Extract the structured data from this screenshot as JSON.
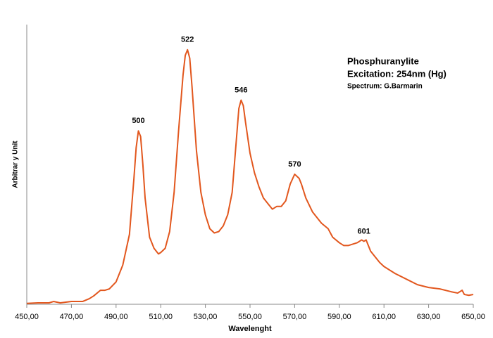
{
  "chart_data": {
    "type": "line",
    "title": "Phosphuranylite",
    "subtitle": "Excitation: 254nm (Hg)",
    "note": "Spectrum: G.Barmarin",
    "x_label": "Wavelenght",
    "y_label": "Arbitrar y Unit",
    "color": "#e2571e",
    "x": [
      450,
      455,
      460,
      462,
      465,
      470,
      475,
      478,
      480,
      483,
      485,
      487,
      490,
      493,
      496,
      498,
      499,
      500,
      501,
      502,
      503,
      505,
      507,
      509,
      510,
      512,
      514,
      516,
      518,
      520,
      521,
      522,
      523,
      524,
      526,
      528,
      530,
      532,
      534,
      536,
      538,
      540,
      542,
      544,
      545,
      546,
      547,
      548,
      550,
      552,
      554,
      556,
      558,
      560,
      562,
      564,
      566,
      568,
      570,
      572,
      573,
      575,
      578,
      580,
      582,
      585,
      587,
      590,
      592,
      594,
      596,
      598,
      600,
      601,
      602,
      604,
      606,
      608,
      610,
      615,
      620,
      625,
      630,
      635,
      640,
      643,
      645,
      646,
      648,
      650
    ],
    "values": [
      0.3,
      0.5,
      0.5,
      1,
      0.5,
      1,
      1,
      2,
      3,
      5,
      5,
      5.5,
      8,
      14,
      25,
      45,
      56,
      62,
      60,
      50,
      38,
      24,
      20,
      18,
      18.5,
      20,
      26,
      40,
      62,
      82,
      89,
      91,
      88,
      78,
      55,
      40,
      32,
      27,
      25.5,
      26,
      28,
      32,
      40,
      60,
      70,
      73,
      71,
      65,
      54,
      47,
      42,
      38,
      36,
      34,
      35,
      35,
      37,
      43,
      46.5,
      45,
      43,
      38,
      33,
      31,
      29,
      27,
      24,
      22,
      21,
      21,
      21.5,
      22,
      23,
      22.5,
      23,
      19,
      17,
      15,
      13.5,
      11,
      9,
      7,
      6,
      5.5,
      4.5,
      4,
      5,
      3.5,
      3.2,
      3.5
    ],
    "peak_labels": [
      500,
      522,
      546,
      570,
      601
    ],
    "xlim": [
      450,
      650
    ],
    "ylim": [
      0,
      100
    ],
    "xticks": [
      {
        "value": 450,
        "label": "450,00"
      },
      {
        "value": 470,
        "label": "470,00"
      },
      {
        "value": 490,
        "label": "490,00"
      },
      {
        "value": 510,
        "label": "510,00"
      },
      {
        "value": 530,
        "label": "530,00"
      },
      {
        "value": 550,
        "label": "550,00"
      },
      {
        "value": 570,
        "label": "570,00"
      },
      {
        "value": 590,
        "label": "590,00"
      },
      {
        "value": 610,
        "label": "610,00"
      },
      {
        "value": 630,
        "label": "630,00"
      },
      {
        "value": 650,
        "label": "650,00"
      }
    ]
  }
}
